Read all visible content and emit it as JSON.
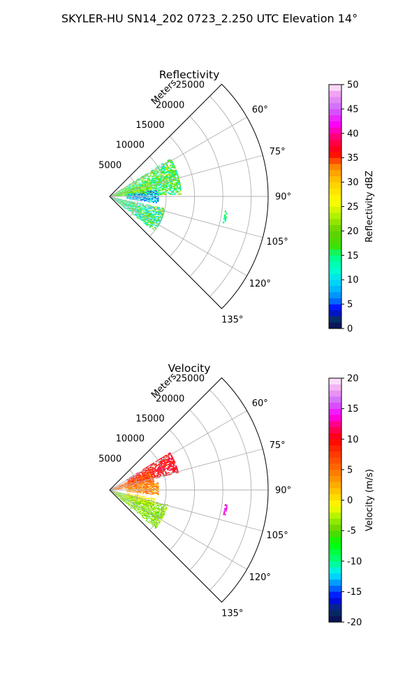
{
  "suptitle": "SKYLER-HU  SN14_202  0723_2.250 UTC Elevation 14°",
  "chart_data": [
    {
      "type": "heatmap",
      "subtype": "polar-sector-ppi",
      "title": "Reflectivity",
      "radial_label": "Meters",
      "radial_ticks": [
        "5000",
        "10000",
        "15000",
        "20000",
        "25000"
      ],
      "angle_ticks": [
        "60°",
        "75°",
        "90°",
        "105°",
        "120°",
        "135°"
      ],
      "angle_range_deg": [
        45,
        135
      ],
      "range_max_m": 28000,
      "grid": true,
      "colorbar": {
        "label": "Reflectivity dBZ",
        "range": [
          0,
          50
        ],
        "ticks": [
          "0",
          "5",
          "10",
          "15",
          "20",
          "25",
          "30",
          "35",
          "40",
          "45",
          "50"
        ],
        "stops": [
          [
            0,
            "#0a0a50"
          ],
          [
            2,
            "#06306a"
          ],
          [
            4,
            "#0000ff"
          ],
          [
            6,
            "#0080ff"
          ],
          [
            9,
            "#00ccff"
          ],
          [
            12,
            "#00ffd0"
          ],
          [
            15,
            "#00ff80"
          ],
          [
            17,
            "#3fe000"
          ],
          [
            20,
            "#66d000"
          ],
          [
            23,
            "#b0f000"
          ],
          [
            26,
            "#ffff00"
          ],
          [
            30,
            "#ffcc00"
          ],
          [
            33,
            "#ff8c00"
          ],
          [
            36,
            "#ff0000"
          ],
          [
            39,
            "#ff0066"
          ],
          [
            42,
            "#ff00ff"
          ],
          [
            45,
            "#cc66ff"
          ],
          [
            48,
            "#f0a0f0"
          ],
          [
            50,
            "#fff0ff"
          ]
        ]
      },
      "echo_regions": [
        {
          "azimuth_deg": [
            58,
            88
          ],
          "range_m": [
            500,
            12500
          ],
          "value": 17,
          "spread": 7
        },
        {
          "azimuth_deg": [
            70,
            86
          ],
          "range_m": [
            500,
            7500
          ],
          "value": 20,
          "spread": 6
        },
        {
          "azimuth_deg": [
            82,
            98
          ],
          "range_m": [
            3000,
            8500
          ],
          "value": 9,
          "spread": 6
        },
        {
          "azimuth_deg": [
            102,
            128
          ],
          "range_m": [
            500,
            10000
          ],
          "value": 15,
          "spread": 7
        },
        {
          "azimuth_deg": [
            97,
            103
          ],
          "range_m": [
            20500,
            21000
          ],
          "value": 15,
          "spread": 3
        }
      ]
    },
    {
      "type": "heatmap",
      "subtype": "polar-sector-ppi",
      "title": "Velocity",
      "radial_label": "Meters",
      "radial_ticks": [
        "5000",
        "10000",
        "15000",
        "20000",
        "25000"
      ],
      "angle_ticks": [
        "60°",
        "75°",
        "90°",
        "105°",
        "120°",
        "135°"
      ],
      "angle_range_deg": [
        45,
        135
      ],
      "range_max_m": 28000,
      "grid": true,
      "colorbar": {
        "label": "Velocity (m/s)",
        "range": [
          -20,
          20
        ],
        "ticks": [
          "-20",
          "-15",
          "-10",
          "-5",
          "0",
          "5",
          "10",
          "15",
          "20"
        ],
        "stops": [
          [
            -20,
            "#0a0a50"
          ],
          [
            -18,
            "#06306a"
          ],
          [
            -16,
            "#0000ff"
          ],
          [
            -14,
            "#0080ff"
          ],
          [
            -12,
            "#00eeff"
          ],
          [
            -10,
            "#00ff80"
          ],
          [
            -7,
            "#00ff00"
          ],
          [
            -5,
            "#60d000"
          ],
          [
            -3,
            "#a0f000"
          ],
          [
            -1,
            "#ffff00"
          ],
          [
            1,
            "#ffd000"
          ],
          [
            3,
            "#ffa000"
          ],
          [
            5,
            "#ff7000"
          ],
          [
            8,
            "#ff3000"
          ],
          [
            10,
            "#ff0000"
          ],
          [
            12,
            "#ff0066"
          ],
          [
            14,
            "#ff00ff"
          ],
          [
            16,
            "#cc66ff"
          ],
          [
            18,
            "#f0a0f0"
          ],
          [
            20,
            "#fff0ff"
          ]
        ]
      },
      "echo_regions": [
        {
          "azimuth_deg": [
            58,
            76
          ],
          "range_m": [
            3500,
            12500
          ],
          "value": 10,
          "spread": 2
        },
        {
          "azimuth_deg": [
            64,
            86
          ],
          "range_m": [
            500,
            8000
          ],
          "value": 6,
          "spread": 3
        },
        {
          "azimuth_deg": [
            80,
            96
          ],
          "range_m": [
            3000,
            8500
          ],
          "value": 4,
          "spread": 3
        },
        {
          "azimuth_deg": [
            100,
            114
          ],
          "range_m": [
            3000,
            8000
          ],
          "value": 0,
          "spread": 2
        },
        {
          "azimuth_deg": [
            104,
            130
          ],
          "range_m": [
            500,
            10500
          ],
          "value": -4,
          "spread": 2
        },
        {
          "azimuth_deg": [
            97,
            103
          ],
          "range_m": [
            20500,
            21000
          ],
          "value": 14,
          "spread": 2
        }
      ]
    }
  ]
}
